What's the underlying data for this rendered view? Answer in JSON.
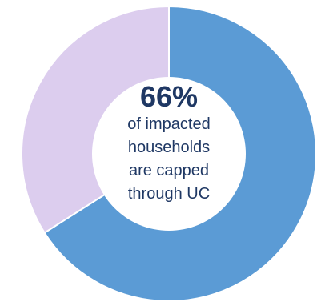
{
  "chart_data": {
    "type": "pie",
    "variant": "donut",
    "start": "top",
    "direction": "clockwise",
    "slices": [
      {
        "value": 66,
        "color": "#5b9bd5"
      },
      {
        "value": 34,
        "color": "#dccdee"
      }
    ],
    "center": {
      "value": "66%",
      "lines": [
        "of impacted",
        "households",
        "are capped",
        "through UC"
      ]
    },
    "colors": {
      "text": "#1f3864",
      "separator": "#ffffff"
    }
  }
}
